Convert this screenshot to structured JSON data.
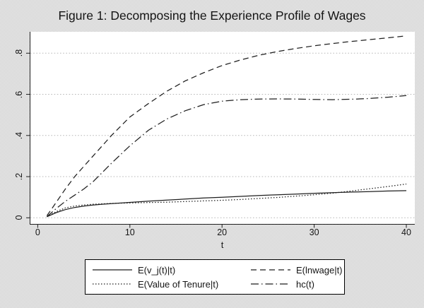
{
  "figure": {
    "title": "Figure 1: Decomposing the Experience Profile of Wages"
  },
  "chart_data": {
    "type": "line",
    "title": "Figure 1: Decomposing the Experience Profile of Wages",
    "xlabel": "t",
    "ylabel": "",
    "xlim": [
      0,
      41
    ],
    "ylim": [
      0,
      0.905
    ],
    "xticks": [
      0,
      10,
      20,
      30,
      40
    ],
    "ytick_labels": [
      "0",
      ".2",
      ".4",
      ".6",
      ".8"
    ],
    "ytick_values": [
      0,
      0.2,
      0.4,
      0.6,
      0.8
    ],
    "grid": "horizontal dotted gridlines at each y tick",
    "legend_position": "bottom box, 2 columns, black border, white background",
    "line_color": "#1f1f1f",
    "grid_color": "#b8b8b8",
    "t": [
      1,
      2,
      3,
      4,
      5,
      6,
      7,
      8,
      10,
      12,
      14,
      16,
      18,
      20,
      22,
      24,
      26,
      28,
      30,
      32,
      34,
      36,
      38,
      40
    ],
    "series": [
      {
        "name": "E(v_j(t)|t)",
        "style": "solid",
        "values": [
          0.005,
          0.025,
          0.04,
          0.05,
          0.057,
          0.062,
          0.066,
          0.069,
          0.075,
          0.081,
          0.086,
          0.091,
          0.096,
          0.1,
          0.104,
          0.108,
          0.112,
          0.115,
          0.119,
          0.122,
          0.125,
          0.127,
          0.13,
          0.132
        ]
      },
      {
        "name": "E(lnwage|t)",
        "style": "dashed",
        "values": [
          0.01,
          0.075,
          0.14,
          0.2,
          0.25,
          0.3,
          0.35,
          0.4,
          0.49,
          0.555,
          0.615,
          0.665,
          0.705,
          0.74,
          0.767,
          0.79,
          0.808,
          0.823,
          0.836,
          0.847,
          0.857,
          0.866,
          0.875,
          0.884
        ]
      },
      {
        "name": "E(Value of Tenure|t)",
        "style": "dotted",
        "values": [
          0.005,
          0.03,
          0.048,
          0.057,
          0.062,
          0.066,
          0.068,
          0.07,
          0.072,
          0.074,
          0.076,
          0.079,
          0.082,
          0.085,
          0.089,
          0.094,
          0.099,
          0.105,
          0.112,
          0.12,
          0.13,
          0.141,
          0.152,
          0.164
        ]
      },
      {
        "name": "hc(t)",
        "style": "dashdot",
        "values": [
          0.005,
          0.045,
          0.08,
          0.11,
          0.14,
          0.175,
          0.22,
          0.265,
          0.35,
          0.425,
          0.48,
          0.52,
          0.55,
          0.567,
          0.574,
          0.577,
          0.578,
          0.577,
          0.575,
          0.574,
          0.576,
          0.58,
          0.586,
          0.594
        ]
      }
    ]
  }
}
